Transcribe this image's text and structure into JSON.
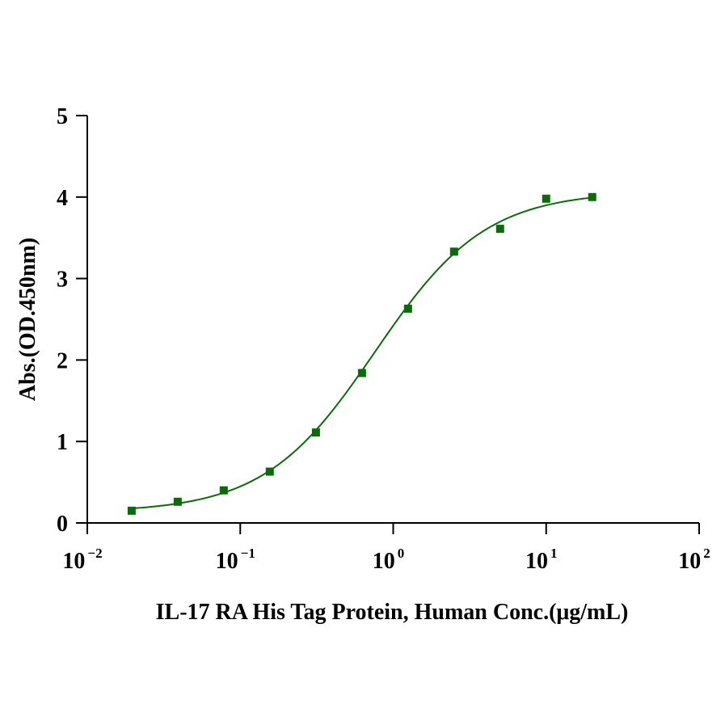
{
  "chart_data": {
    "type": "scatter",
    "title": "",
    "xlabel": "IL-17 RA His Tag Protein, Human Conc.(μg/mL)",
    "ylabel": "Abs.(OD.450nm)",
    "x_scale": "log",
    "xlim": [
      0.01,
      100
    ],
    "ylim": [
      0,
      5
    ],
    "x_ticks": [
      {
        "base": "10",
        "exp": "-2",
        "value": 0.01
      },
      {
        "base": "10",
        "exp": "-1",
        "value": 0.1
      },
      {
        "base": "10",
        "exp": "0",
        "value": 1
      },
      {
        "base": "10",
        "exp": "1",
        "value": 10
      },
      {
        "base": "10",
        "exp": "2",
        "value": 100
      }
    ],
    "y_ticks": [
      "0",
      "1",
      "2",
      "3",
      "4",
      "5"
    ],
    "grid": false,
    "legend": "none",
    "colors": {
      "series": "#0b6b0b",
      "axis": "#000000"
    },
    "series": [
      {
        "marker": "square",
        "x": [
          0.0195,
          0.039,
          0.078,
          0.156,
          0.3125,
          0.625,
          1.25,
          2.5,
          5,
          10,
          20
        ],
        "y": [
          0.15,
          0.26,
          0.4,
          0.63,
          1.11,
          1.84,
          2.63,
          3.33,
          3.61,
          3.98,
          4.0
        ],
        "fit": {
          "model": "4PL",
          "bottom": 0.13,
          "top": 4.07,
          "ec50": 0.76,
          "hill": 1.2
        }
      }
    ]
  }
}
